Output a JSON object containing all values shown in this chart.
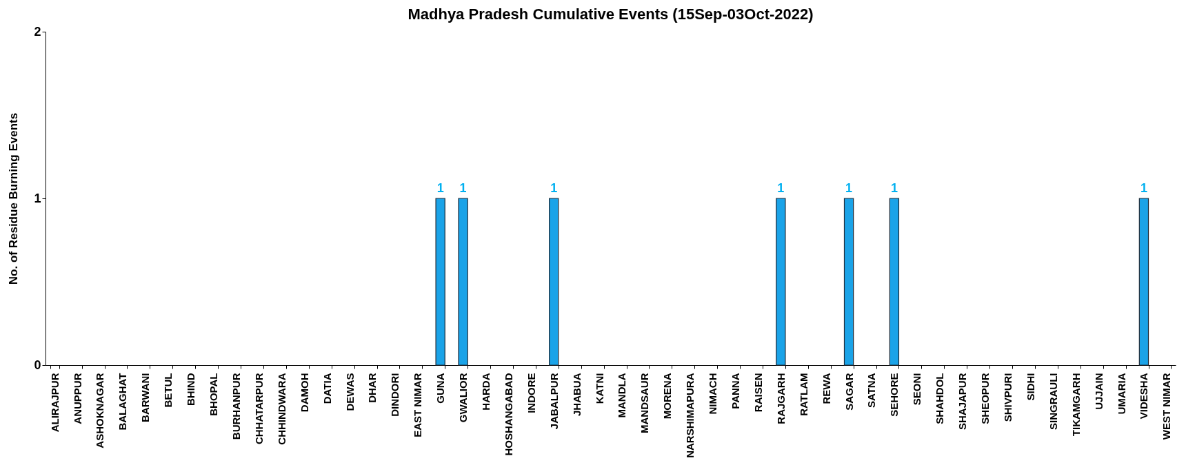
{
  "chart_data": {
    "type": "bar",
    "title": "Madhya Pradesh Cumulative Events (15Sep-03Oct-2022)",
    "ylabel": "No. of Residue Burning Events",
    "categories": [
      "ALIRAJPUR",
      "ANUPPUR",
      "ASHOKNAGAR",
      "BALAGHAT",
      "BARWANI",
      "BETUL",
      "BHIND",
      "BHOPAL",
      "BURHANPUR",
      "CHHATARPUR",
      "CHHINDWARA",
      "DAMOH",
      "DATIA",
      "DEWAS",
      "DHAR",
      "DINDORI",
      "EAST NIMAR",
      "GUNA",
      "GWALIOR",
      "HARDA",
      "HOSHANGABAD",
      "INDORE",
      "JABALPUR",
      "JHABUA",
      "KATNI",
      "MANDLA",
      "MANDSAUR",
      "MORENA",
      "NARSHIMAPURA",
      "NIMACH",
      "PANNA",
      "RAISEN",
      "RAJGARH",
      "RATLAM",
      "REWA",
      "SAGAR",
      "SATNA",
      "SEHORE",
      "SEONI",
      "SHAHDOL",
      "SHAJAPUR",
      "SHEOPUR",
      "SHIVPURI",
      "SIDHI",
      "SINGRAULI",
      "TIKAMGARH",
      "UJJAIN",
      "UMARIA",
      "VIDESHA",
      "WEST NIMAR"
    ],
    "values": [
      0,
      0,
      0,
      0,
      0,
      0,
      0,
      0,
      0,
      0,
      0,
      0,
      0,
      0,
      0,
      0,
      0,
      1,
      1,
      0,
      0,
      0,
      1,
      0,
      0,
      0,
      0,
      0,
      0,
      0,
      0,
      0,
      1,
      0,
      0,
      1,
      0,
      1,
      0,
      0,
      0,
      0,
      0,
      0,
      0,
      0,
      0,
      0,
      1,
      0
    ],
    "value_labels": [
      null,
      null,
      null,
      null,
      null,
      null,
      null,
      null,
      null,
      null,
      null,
      null,
      null,
      null,
      null,
      null,
      null,
      "1",
      "1",
      null,
      null,
      null,
      "1",
      null,
      null,
      null,
      null,
      null,
      null,
      null,
      null,
      null,
      "1",
      null,
      null,
      "1",
      null,
      "1",
      null,
      null,
      null,
      null,
      null,
      null,
      null,
      null,
      null,
      null,
      "1",
      null
    ],
    "color": "#1aa3e8",
    "ylim": [
      0,
      2
    ],
    "yticks": [
      0,
      1,
      2
    ],
    "grid": false
  }
}
